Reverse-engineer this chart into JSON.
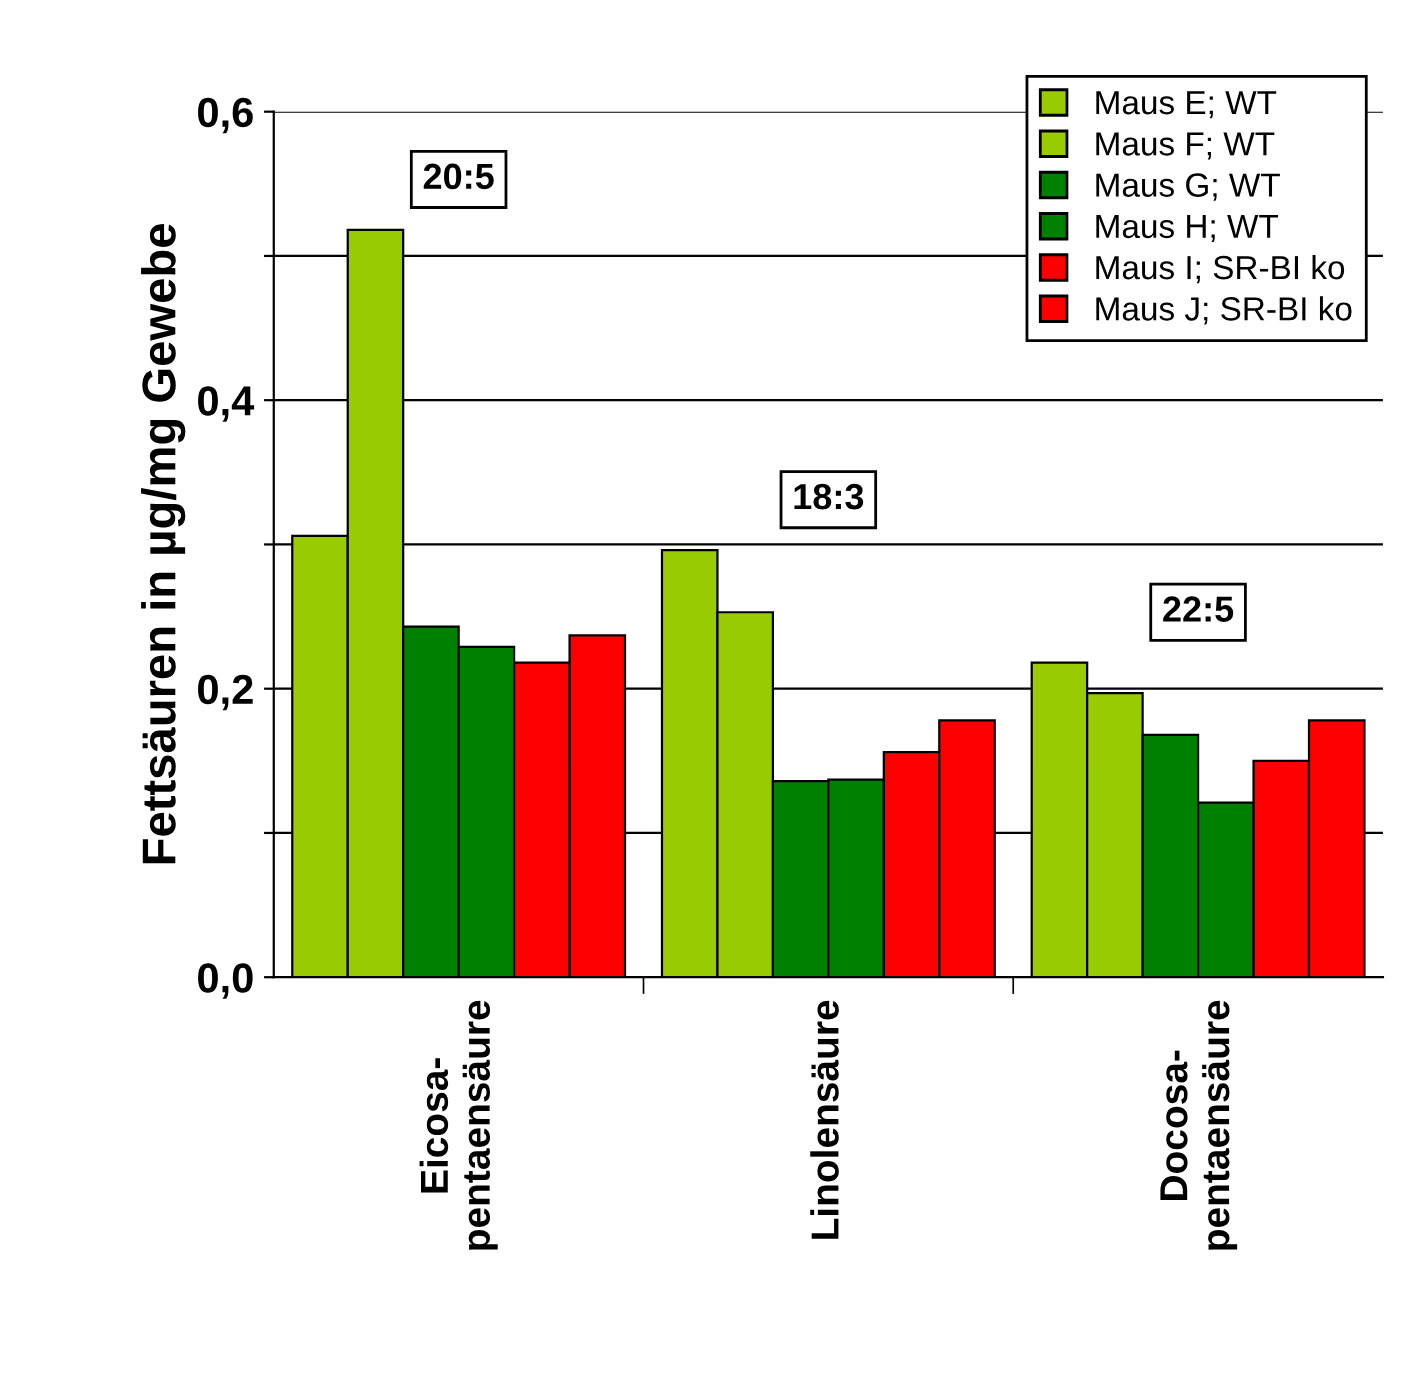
{
  "chart_data": {
    "type": "bar",
    "ylabel": "Fettsäuren in µg/mg Gewebe",
    "categories": [
      "Eicosa-\npentaensäure",
      "Linolensäure",
      "Docosa-\npentaensäure"
    ],
    "series": [
      {
        "name": "Maus E; WT",
        "color": "#99cc00",
        "values": [
          0.306,
          0.296,
          0.218
        ]
      },
      {
        "name": "Maus F; WT",
        "color": "#99cc00",
        "values": [
          0.518,
          0.253,
          0.197
        ]
      },
      {
        "name": "Maus G; WT",
        "color": "#008000",
        "values": [
          0.243,
          0.136,
          0.168
        ]
      },
      {
        "name": "Maus H; WT",
        "color": "#008000",
        "values": [
          0.229,
          0.137,
          0.121
        ]
      },
      {
        "name": "Maus I; SR-BI ko",
        "color": "#ff0000",
        "values": [
          0.218,
          0.156,
          0.15
        ]
      },
      {
        "name": "Maus J; SR-BI ko",
        "color": "#ff0000",
        "values": [
          0.237,
          0.178,
          0.178
        ]
      }
    ],
    "ylim": [
      0,
      0.6
    ],
    "yticks": [
      {
        "value": 0,
        "label": "0,0"
      },
      {
        "value": 0.1,
        "label": null
      },
      {
        "value": 0.2,
        "label": "0,2"
      },
      {
        "value": 0.3,
        "label": null
      },
      {
        "value": 0.4,
        "label": "0,4"
      },
      {
        "value": 0.5,
        "label": null
      },
      {
        "value": 0.6,
        "label": "0,6"
      }
    ],
    "grid": "y",
    "legend": "top right",
    "annotations": [
      "20:5",
      "18:3",
      "22:5"
    ]
  }
}
